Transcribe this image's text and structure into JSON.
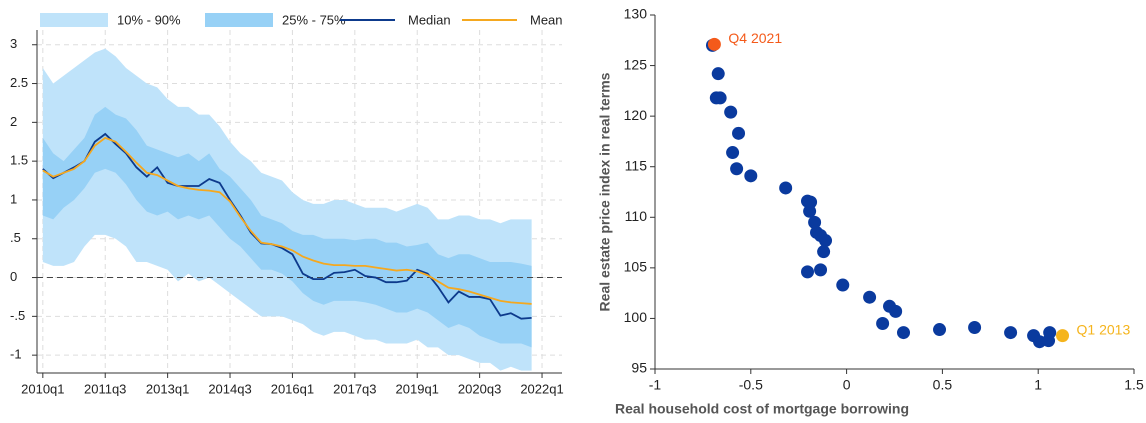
{
  "chart_data": [
    {
      "type": "fan",
      "grid": true,
      "hline": 0,
      "xlim": [
        2009.86,
        2022.48
      ],
      "ylim": [
        -1.23,
        3.19
      ],
      "xticks": [
        {
          "value": 2010,
          "label": "2010q1"
        },
        {
          "value": 2011.5,
          "label": "2011q3"
        },
        {
          "value": 2013,
          "label": "2013q1"
        },
        {
          "value": 2014.5,
          "label": "2014q3"
        },
        {
          "value": 2016,
          "label": "2016q1"
        },
        {
          "value": 2017.5,
          "label": "2017q3"
        },
        {
          "value": 2019,
          "label": "2019q1"
        },
        {
          "value": 2020.5,
          "label": "2020q3"
        },
        {
          "value": 2022,
          "label": "2022q1"
        }
      ],
      "yticks": [
        {
          "value": -1,
          "label": "-1"
        },
        {
          "value": -0.5,
          "label": "-.5"
        },
        0,
        {
          "value": 0.5,
          "label": ".5"
        },
        1,
        1.5,
        2,
        2.5,
        3
      ],
      "x": [
        2010,
        2010.25,
        2010.5,
        2010.75,
        2011,
        2011.25,
        2011.5,
        2011.75,
        2012,
        2012.25,
        2012.5,
        2012.75,
        2013,
        2013.25,
        2013.5,
        2013.75,
        2014,
        2014.25,
        2014.5,
        2014.75,
        2015,
        2015.25,
        2015.5,
        2015.75,
        2016,
        2016.25,
        2016.5,
        2016.75,
        2017,
        2017.25,
        2017.5,
        2017.75,
        2018,
        2018.25,
        2018.5,
        2018.75,
        2019,
        2019.25,
        2019.5,
        2019.75,
        2020,
        2020.25,
        2020.5,
        2020.75,
        2021,
        2021.25,
        2021.5,
        2021.75
      ],
      "bands": [
        {
          "name": "10% - 90%",
          "color": "#bfe3fa",
          "upper": [
            2.7,
            2.5,
            2.6,
            2.7,
            2.8,
            2.9,
            2.95,
            2.85,
            2.7,
            2.6,
            2.5,
            2.45,
            2.3,
            2.2,
            2.2,
            2.1,
            2.1,
            1.95,
            1.75,
            1.6,
            1.5,
            1.35,
            1.3,
            1.25,
            1.1,
            1.0,
            0.95,
            0.95,
            1.0,
            1.0,
            0.95,
            0.9,
            0.9,
            0.9,
            0.85,
            0.9,
            0.95,
            0.9,
            0.75,
            0.75,
            0.8,
            0.8,
            0.75,
            0.75,
            0.7,
            0.75,
            0.75,
            0.75
          ],
          "lower": [
            0.2,
            0.15,
            0.15,
            0.2,
            0.4,
            0.55,
            0.55,
            0.5,
            0.4,
            0.2,
            0.2,
            0.15,
            0.1,
            -0.05,
            0.05,
            -0.05,
            0.0,
            -0.1,
            -0.2,
            -0.3,
            -0.4,
            -0.5,
            -0.5,
            -0.5,
            -0.55,
            -0.6,
            -0.7,
            -0.75,
            -0.7,
            -0.7,
            -0.75,
            -0.8,
            -0.8,
            -0.85,
            -0.85,
            -0.85,
            -0.8,
            -0.9,
            -0.9,
            -1.0,
            -1.0,
            -1.05,
            -1.1,
            -1.1,
            -1.2,
            -1.15,
            -1.2,
            -1.2
          ]
        },
        {
          "name": "25% - 75%",
          "color": "#97d1f6",
          "upper": [
            1.8,
            1.6,
            1.5,
            1.65,
            1.8,
            2.1,
            2.2,
            2.1,
            2.05,
            1.9,
            1.7,
            1.65,
            1.6,
            1.55,
            1.6,
            1.5,
            1.6,
            1.4,
            1.3,
            1.15,
            1.0,
            0.8,
            0.75,
            0.7,
            0.6,
            0.55,
            0.55,
            0.5,
            0.5,
            0.5,
            0.48,
            0.5,
            0.5,
            0.45,
            0.45,
            0.4,
            0.42,
            0.45,
            0.3,
            0.25,
            0.3,
            0.3,
            0.25,
            0.2,
            0.2,
            0.2,
            0.18,
            0.15
          ],
          "lower": [
            0.8,
            0.75,
            0.9,
            1.0,
            1.15,
            1.35,
            1.4,
            1.35,
            1.2,
            1.0,
            0.85,
            0.8,
            0.85,
            0.75,
            0.8,
            0.75,
            0.8,
            0.65,
            0.5,
            0.4,
            0.25,
            0.1,
            0.1,
            0.05,
            -0.05,
            -0.2,
            -0.3,
            -0.35,
            -0.3,
            -0.3,
            -0.3,
            -0.32,
            -0.35,
            -0.4,
            -0.45,
            -0.45,
            -0.4,
            -0.45,
            -0.55,
            -0.65,
            -0.6,
            -0.65,
            -0.75,
            -0.8,
            -0.85,
            -0.85,
            -0.85,
            -0.9
          ]
        }
      ],
      "series": [
        {
          "name": "Median",
          "color": "#0d3a8c",
          "values": [
            1.4,
            1.28,
            1.35,
            1.42,
            1.5,
            1.75,
            1.85,
            1.72,
            1.6,
            1.42,
            1.3,
            1.42,
            1.22,
            1.18,
            1.18,
            1.18,
            1.27,
            1.22,
            1.0,
            0.8,
            0.58,
            0.44,
            0.43,
            0.38,
            0.3,
            0.05,
            -0.02,
            -0.02,
            0.06,
            0.07,
            0.1,
            0.02,
            0.0,
            -0.06,
            -0.06,
            -0.04,
            0.1,
            0.05,
            -0.12,
            -0.32,
            -0.18,
            -0.25,
            -0.25,
            -0.28,
            -0.49,
            -0.46,
            -0.53,
            -0.52
          ]
        },
        {
          "name": "Mean",
          "color": "#f5a81f",
          "values": [
            1.38,
            1.3,
            1.35,
            1.4,
            1.5,
            1.7,
            1.8,
            1.75,
            1.62,
            1.48,
            1.35,
            1.32,
            1.25,
            1.18,
            1.15,
            1.13,
            1.12,
            1.1,
            0.98,
            0.78,
            0.6,
            0.45,
            0.43,
            0.4,
            0.35,
            0.27,
            0.22,
            0.18,
            0.16,
            0.16,
            0.15,
            0.15,
            0.13,
            0.11,
            0.09,
            0.1,
            0.08,
            0.03,
            -0.05,
            -0.13,
            -0.15,
            -0.18,
            -0.22,
            -0.26,
            -0.3,
            -0.32,
            -0.33,
            -0.34
          ]
        }
      ]
    },
    {
      "type": "scatter",
      "grid": false,
      "xlabel": "Real household cost of mortgage borrowing",
      "ylabel": "Real estate price index in real terms",
      "xlim": [
        -1,
        1.5
      ],
      "ylim": [
        95,
        130
      ],
      "xticks": [
        -1,
        -0.5,
        0,
        0.5,
        1,
        1.5
      ],
      "yticks": [
        95,
        100,
        105,
        110,
        115,
        120,
        125,
        130
      ],
      "series": [
        {
          "color": "#0a3a9e",
          "x": [
            -0.7,
            -0.67,
            -0.68,
            -0.66,
            -0.605,
            -0.564,
            -0.595,
            -0.574,
            -0.5,
            -0.318,
            -0.204,
            -0.188,
            -0.193,
            -0.167,
            -0.157,
            -0.136,
            -0.11,
            -0.12,
            -0.204,
            -0.136,
            -0.02,
            0.12,
            0.224,
            0.256,
            0.188,
            0.297,
            0.485,
            0.668,
            0.856,
            0.976,
            1.007,
            1.054,
            1.06
          ],
          "y": [
            127.0,
            124.2,
            121.8,
            121.8,
            120.4,
            118.3,
            116.4,
            114.8,
            114.1,
            112.9,
            111.6,
            111.5,
            110.6,
            109.5,
            108.5,
            108.2,
            107.7,
            106.6,
            104.6,
            104.8,
            103.3,
            102.1,
            101.2,
            100.7,
            99.5,
            98.6,
            98.9,
            99.1,
            98.6,
            98.3,
            97.7,
            97.8,
            98.6
          ]
        }
      ],
      "highlights": [
        {
          "label": "Q4 2021",
          "x": -0.69,
          "y": 127.1,
          "color": "#f45a1a"
        },
        {
          "label": "Q1 2013",
          "x": 1.127,
          "y": 98.3,
          "color": "#f5b41c"
        }
      ]
    }
  ]
}
